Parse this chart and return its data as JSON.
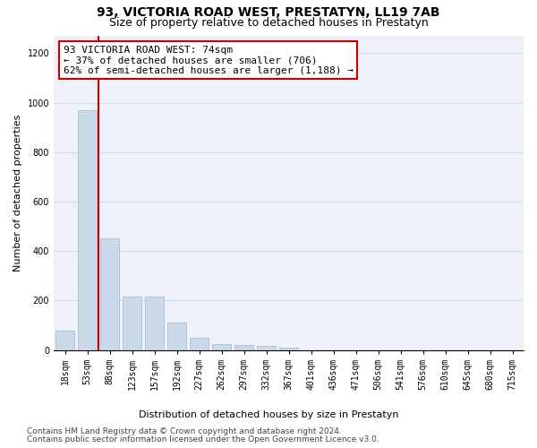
{
  "title": "93, VICTORIA ROAD WEST, PRESTATYN, LL19 7AB",
  "subtitle": "Size of property relative to detached houses in Prestatyn",
  "xlabel": "Distribution of detached houses by size in Prestatyn",
  "ylabel": "Number of detached properties",
  "bar_labels": [
    "18sqm",
    "53sqm",
    "88sqm",
    "123sqm",
    "157sqm",
    "192sqm",
    "227sqm",
    "262sqm",
    "297sqm",
    "332sqm",
    "367sqm",
    "401sqm",
    "436sqm",
    "471sqm",
    "506sqm",
    "541sqm",
    "576sqm",
    "610sqm",
    "645sqm",
    "680sqm",
    "715sqm"
  ],
  "bar_values": [
    80,
    970,
    450,
    215,
    215,
    110,
    48,
    25,
    20,
    18,
    10,
    0,
    0,
    0,
    0,
    0,
    0,
    0,
    0,
    0,
    0
  ],
  "bar_color": "#c9d9ea",
  "bar_edgecolor": "#a0b8cc",
  "annotation_text": "93 VICTORIA ROAD WEST: 74sqm\n← 37% of detached houses are smaller (706)\n62% of semi-detached houses are larger (1,188) →",
  "annotation_box_color": "#ffffff",
  "annotation_box_edgecolor": "#cc0000",
  "vline_color": "#cc0000",
  "ylim": [
    0,
    1270
  ],
  "yticks": [
    0,
    200,
    400,
    600,
    800,
    1000,
    1200
  ],
  "grid_color": "#d0d8e8",
  "background_color": "#eef2f8",
  "footer_line1": "Contains HM Land Registry data © Crown copyright and database right 2024.",
  "footer_line2": "Contains public sector information licensed under the Open Government Licence v3.0.",
  "title_fontsize": 10,
  "subtitle_fontsize": 9,
  "axis_label_fontsize": 8,
  "tick_fontsize": 7,
  "annotation_fontsize": 8,
  "footer_fontsize": 6.5
}
